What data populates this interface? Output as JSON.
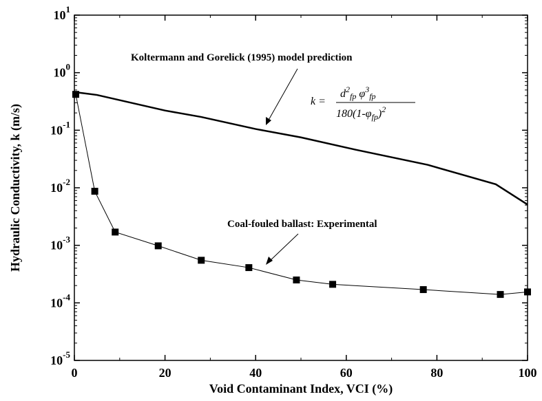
{
  "chart_data": {
    "type": "line",
    "log_y": true,
    "xlabel": "Void Contaminant Index, VCI (%)",
    "ylabel": "Hydraulic Conductivity, k (m/s)",
    "xlim": [
      0,
      100
    ],
    "xticks": [
      0,
      20,
      40,
      60,
      80,
      100
    ],
    "ylim": [
      1e-05,
      10
    ],
    "yticks": [
      {
        "value": 10,
        "label": "10^1"
      },
      {
        "value": 1,
        "label": "10^0"
      },
      {
        "value": 0.1,
        "label": "10^-1"
      },
      {
        "value": 0.01,
        "label": "10^-2"
      },
      {
        "value": 0.001,
        "label": "10^-3"
      },
      {
        "value": 0.0001,
        "label": "10^-4"
      },
      {
        "value": 1e-05,
        "label": "10^-5"
      }
    ],
    "series": [
      {
        "name": "Koltermann and Gorelick (1995) model prediction",
        "color": "#000000",
        "marker": false,
        "x": [
          0,
          5,
          20,
          28,
          40,
          50,
          62,
          78,
          93,
          100
        ],
        "values": [
          0.46,
          0.41,
          0.22,
          0.17,
          0.105,
          0.075,
          0.046,
          0.025,
          0.0115,
          0.0051
        ]
      },
      {
        "name": "Coal-fouled ballast: Experimental",
        "color": "#000000",
        "marker": true,
        "x": [
          0.3,
          4.5,
          9,
          18.5,
          28,
          38.5,
          49,
          57,
          77,
          94,
          100
        ],
        "values": [
          0.42,
          0.0087,
          0.0017,
          0.00098,
          0.00055,
          0.00041,
          0.00025,
          0.00021,
          0.00017,
          0.00014,
          0.000155
        ]
      }
    ],
    "formula": {
      "lhs": "k =",
      "num": [
        "d",
        "2",
        "fp",
        "φ",
        "3",
        "fp"
      ],
      "den": [
        "180(1-",
        "φ",
        "fp",
        ")",
        "2"
      ]
    }
  }
}
